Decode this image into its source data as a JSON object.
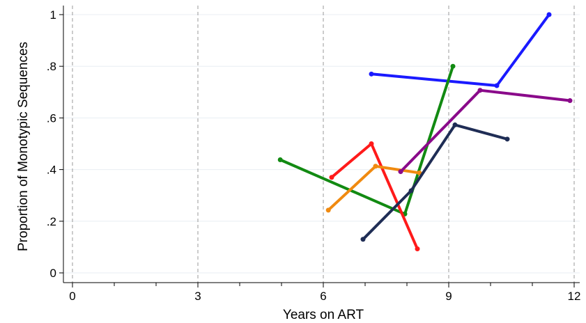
{
  "chart_data": {
    "type": "line",
    "title": "",
    "xlabel": "Years on ART",
    "ylabel": "Proportion of Monotypic Sequences",
    "xlim": [
      0,
      12
    ],
    "ylim": [
      0,
      1
    ],
    "x_ticks": [
      0,
      3,
      6,
      9,
      12
    ],
    "x_tick_labels": [
      "0",
      "3",
      "6",
      "9",
      "12"
    ],
    "x_minor_ticks": [
      1,
      2,
      4,
      5,
      7,
      8,
      10,
      11
    ],
    "y_ticks": [
      0,
      0.2,
      0.4,
      0.6,
      0.8,
      1
    ],
    "y_tick_labels": [
      "0",
      ".2",
      ".4",
      ".6",
      ".8",
      "1"
    ],
    "x_gridlines": [
      0,
      3,
      6,
      9,
      12
    ],
    "x_gridline_style": "dashed",
    "y_gridlines": [
      0,
      0.2,
      0.4,
      0.6,
      0.8,
      1
    ],
    "y_gridline_style": "solid-light",
    "legend": "none",
    "series": [
      {
        "color": "#1a1aff",
        "points": [
          [
            7.15,
            0.77
          ],
          [
            10.15,
            0.725
          ],
          [
            11.4,
            1.0
          ]
        ]
      },
      {
        "color": "#128a12",
        "points": [
          [
            4.97,
            0.438
          ],
          [
            7.95,
            0.228
          ],
          [
            9.1,
            0.8
          ]
        ]
      },
      {
        "color": "#ff1a1a",
        "points": [
          [
            6.2,
            0.37
          ],
          [
            7.15,
            0.5
          ],
          [
            8.25,
            0.093
          ]
        ]
      },
      {
        "color": "#f08a10",
        "points": [
          [
            6.12,
            0.243
          ],
          [
            7.25,
            0.413
          ],
          [
            8.3,
            0.387
          ]
        ]
      },
      {
        "color": "#8a0a8a",
        "points": [
          [
            7.85,
            0.392
          ],
          [
            9.75,
            0.707
          ],
          [
            11.9,
            0.667
          ]
        ]
      },
      {
        "color": "#1f2d55",
        "points": [
          [
            6.95,
            0.13
          ],
          [
            8.1,
            0.318
          ],
          [
            9.15,
            0.573
          ],
          [
            10.4,
            0.518
          ]
        ]
      }
    ]
  }
}
